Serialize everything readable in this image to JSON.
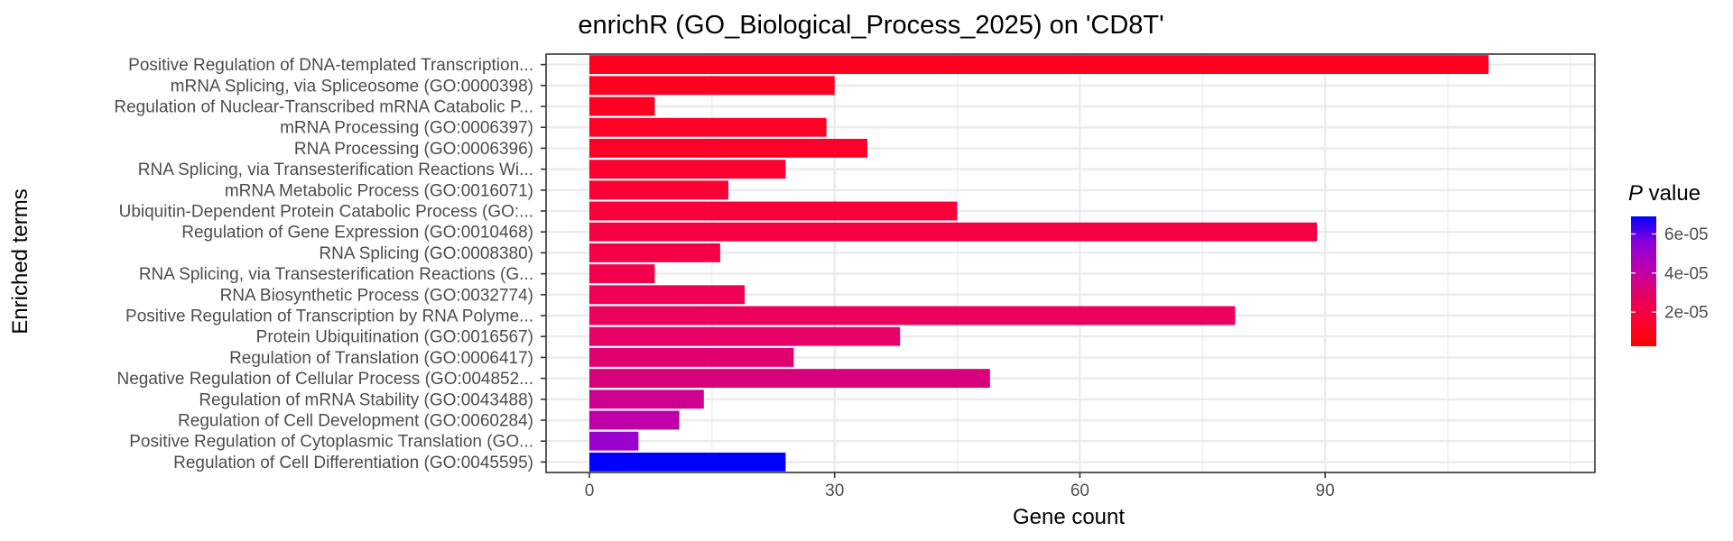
{
  "chart_data": {
    "type": "bar",
    "orientation": "horizontal",
    "title": "enrichR (GO_Biological_Process_2025) on 'CD8T'",
    "xlabel": "Gene count",
    "ylabel": "Enriched terms",
    "xlim": [
      -5.3,
      123
    ],
    "xticks": [
      0,
      30,
      60,
      90
    ],
    "grid": true,
    "categories": [
      "Positive Regulation of DNA-templated Transcription...",
      "mRNA Splicing, via Spliceosome (GO:0000398)",
      "Regulation of Nuclear-Transcribed mRNA Catabolic P...",
      "mRNA Processing (GO:0006397)",
      "RNA Processing (GO:0006396)",
      "RNA Splicing, via Transesterification Reactions Wi...",
      "mRNA Metabolic Process (GO:0016071)",
      "Ubiquitin-Dependent Protein Catabolic Process (GO:...",
      "Regulation of Gene Expression (GO:0010468)",
      "RNA Splicing (GO:0008380)",
      "RNA Splicing, via Transesterification Reactions (G...",
      "RNA Biosynthetic Process (GO:0032774)",
      "Positive Regulation of Transcription by RNA Polyme...",
      "Protein Ubiquitination (GO:0016567)",
      "Regulation of Translation (GO:0006417)",
      "Negative Regulation of Cellular Process (GO:004852...",
      "Regulation of mRNA Stability (GO:0043488)",
      "Regulation of Cell Development (GO:0060284)",
      "Positive Regulation of Cytoplasmic Translation (GO...",
      "Regulation of Cell Differentiation (GO:0045595)"
    ],
    "values": [
      110,
      30,
      8,
      29,
      34,
      24,
      17,
      45,
      89,
      16,
      8,
      19,
      79,
      38,
      25,
      49,
      14,
      11,
      6,
      24
    ],
    "bar_colors": [
      "#ff0021",
      "#ff0020",
      "#ff0025",
      "#ff0026",
      "#fe002a",
      "#fd002f",
      "#fb0034",
      "#f9003a",
      "#f70041",
      "#f50047",
      "#f2004e",
      "#ef0055",
      "#ec005e",
      "#e60067",
      "#e0006f",
      "#d9007b",
      "#ce0090",
      "#bf00a8",
      "#9b00d0",
      "#0000ff"
    ],
    "legend": {
      "title_italic": "P",
      "title_rest": " value",
      "tick_labels": [
        "6e-05",
        "4e-05",
        "2e-05"
      ],
      "tick_values": [
        6e-05,
        4e-05,
        2e-05
      ],
      "range": [
        2.5e-06,
        6.9e-05
      ],
      "colors": [
        "#ff0000",
        "#ff0033",
        "#e30064",
        "#bb00b0",
        "#8a00dc",
        "#0000ff"
      ],
      "placement": "right"
    }
  }
}
